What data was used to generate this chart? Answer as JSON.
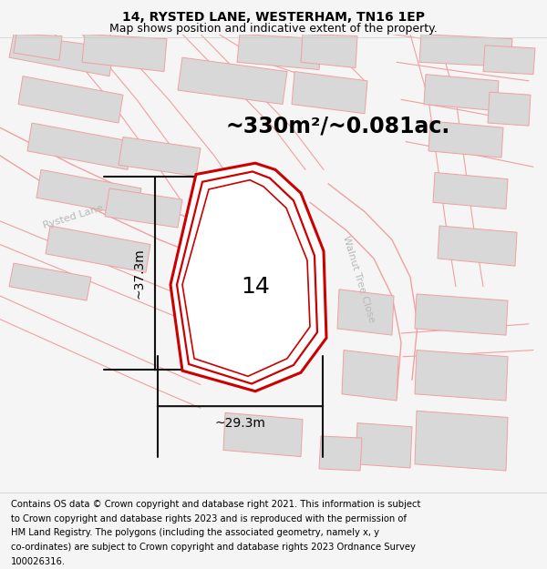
{
  "title": "14, RYSTED LANE, WESTERHAM, TN16 1EP",
  "subtitle": "Map shows position and indicative extent of the property.",
  "area_label": "~330m²/~0.081ac.",
  "number_label": "14",
  "dim_width": "~29.3m",
  "dim_height": "~37.3m",
  "road_label_rysted_upper": "Rysted Lane",
  "road_label_walnut": "Walnut Tree Close",
  "road_label_rysted_lower": "Rysted Lane",
  "road_color": "#f0a0a0",
  "road_fill": "#f7f0f0",
  "building_fill": "#d8d8d8",
  "building_edge": "#f0a0a0",
  "property_fill": "#ffffff",
  "property_edge_color": "#cc0000",
  "dim_line_color": "#111111",
  "bg_color": "#f5f5f5",
  "road_label_color": "#b8b8b8",
  "footer_lines": [
    "Contains OS data © Crown copyright and database right 2021. This information is subject",
    "to Crown copyright and database rights 2023 and is reproduced with the permission of",
    "HM Land Registry. The polygons (including the associated geometry, namely x, y",
    "co-ordinates) are subject to Crown copyright and database rights 2023 Ordnance Survey",
    "100026316."
  ],
  "title_fontsize": 10,
  "subtitle_fontsize": 9,
  "area_fontsize": 17,
  "number_fontsize": 18,
  "road_fontsize": 8,
  "footer_fontsize": 7.2,
  "dim_fontsize": 10
}
